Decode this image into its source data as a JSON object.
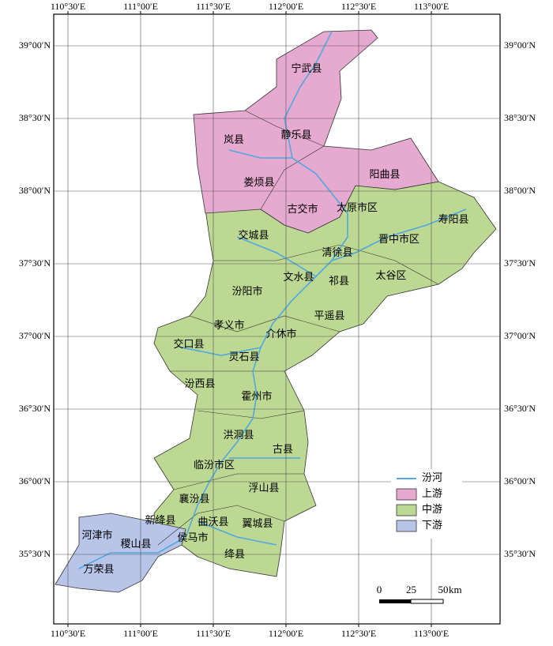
{
  "map": {
    "top_axis_labels": [
      "110°30′E",
      "111°00′E",
      "111°30′E",
      "112°00′E",
      "112°30′E",
      "113°00′E"
    ],
    "bottom_axis_labels": [
      "110°30′E",
      "111°00′E",
      "111°30′E",
      "112°00′E",
      "112°30′E",
      "113°00′E"
    ],
    "left_axis_labels": [
      "39°00′N",
      "38°30′N",
      "38°00′N",
      "37°30′N",
      "37°00′N",
      "36°30′N",
      "36°00′N",
      "35°30′N"
    ],
    "right_axis_labels": [
      "39°00′N",
      "38°30′N",
      "38°00′N",
      "37°30′N",
      "37°00′N",
      "36°30′N",
      "36°00′N",
      "35°30′N"
    ],
    "counties": [
      "宁武县",
      "岚县",
      "静乐县",
      "娄烦县",
      "阳曲县",
      "古交市",
      "太原市区",
      "寿阳县",
      "交城县",
      "晋中市区",
      "清徐县",
      "文水县",
      "祁县",
      "太谷区",
      "汾阳市",
      "平遥县",
      "孝义市",
      "介休市",
      "交口县",
      "灵石县",
      "汾西县",
      "霍州市",
      "洪洞县",
      "古县",
      "临汾市区",
      "浮山县",
      "襄汾县",
      "新绛县",
      "曲沃县",
      "翼城县",
      "侯马市",
      "河津市",
      "稷山县",
      "绛县",
      "万荣县"
    ],
    "legend": [
      "汾河",
      "上游",
      "中游",
      "下游"
    ],
    "scale_bar": {
      "ticks": [
        0,
        25,
        50
      ],
      "unit": "km"
    }
  }
}
